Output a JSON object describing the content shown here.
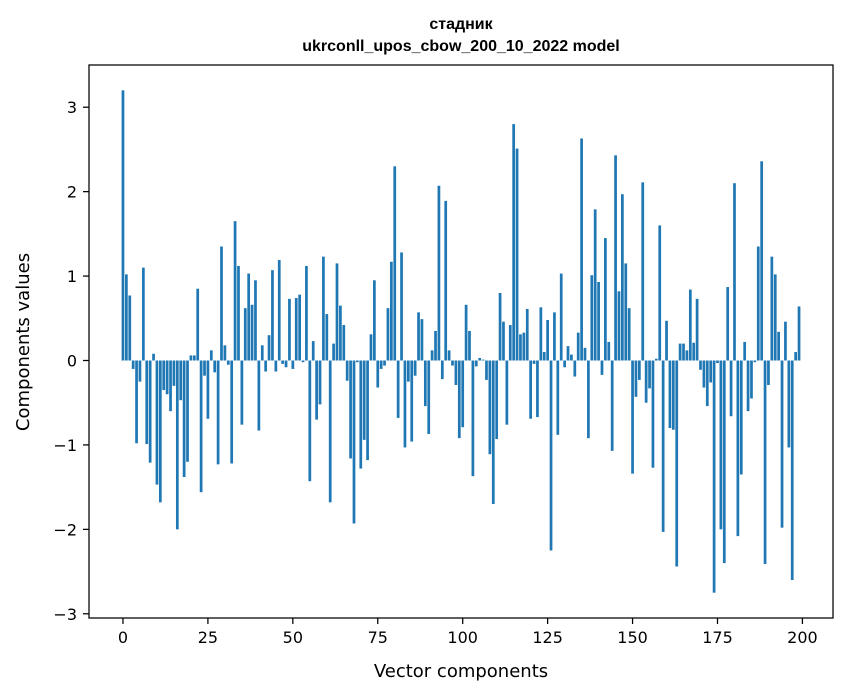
{
  "chart_data": {
    "type": "bar",
    "title_line1": "стадник",
    "title_line2": "ukrconll_upos_cbow_200_10_2022 model",
    "xlabel": "Vector components",
    "ylabel": "Components values",
    "xlim": [
      -10,
      209
    ],
    "ylim": [
      -3.05,
      3.5
    ],
    "xticks": [
      0,
      25,
      50,
      75,
      100,
      125,
      150,
      175,
      200
    ],
    "xtick_labels": [
      "0",
      "25",
      "50",
      "75",
      "100",
      "125",
      "150",
      "175",
      "200"
    ],
    "yticks": [
      -3,
      -2,
      -1,
      0,
      1,
      2,
      3
    ],
    "ytick_labels": [
      "−3",
      "−2",
      "−1",
      "0",
      "1",
      "2",
      "3"
    ],
    "bar_color": "#1f77b4",
    "values": [
      3.2,
      1.02,
      0.77,
      -0.1,
      -0.98,
      -0.25,
      1.1,
      -0.99,
      -1.21,
      0.08,
      -1.47,
      -1.68,
      -0.35,
      -0.4,
      -0.6,
      -0.3,
      -2.0,
      -0.47,
      -1.38,
      -1.2,
      0.06,
      0.06,
      0.85,
      -1.56,
      -0.18,
      -0.69,
      0.12,
      -0.14,
      -1.23,
      1.35,
      0.18,
      -0.05,
      -1.22,
      1.65,
      1.12,
      -0.76,
      0.62,
      1.03,
      0.66,
      0.95,
      -0.83,
      0.18,
      -0.13,
      0.3,
      1.07,
      -0.13,
      1.19,
      -0.04,
      -0.08,
      0.73,
      -0.1,
      0.74,
      0.78,
      -0.02,
      1.12,
      -1.43,
      0.23,
      -0.7,
      -0.52,
      1.23,
      0.55,
      -1.68,
      0.2,
      1.15,
      0.65,
      0.42,
      -0.24,
      -1.16,
      -1.93,
      -0.02,
      -1.28,
      -0.94,
      -1.18,
      0.31,
      0.95,
      -0.32,
      -0.1,
      -0.06,
      0.62,
      1.17,
      2.3,
      -0.68,
      1.28,
      -1.03,
      -0.25,
      -0.96,
      -0.18,
      0.57,
      0.49,
      -0.54,
      -0.87,
      0.12,
      0.35,
      2.07,
      -0.22,
      1.89,
      0.12,
      -0.06,
      -0.29,
      -0.92,
      -0.79,
      0.66,
      0.35,
      -1.37,
      -0.07,
      0.03,
      0.01,
      -0.23,
      -1.11,
      -1.7,
      -0.93,
      0.8,
      0.46,
      -0.76,
      0.42,
      2.8,
      2.51,
      0.31,
      0.33,
      0.61,
      -0.69,
      -0.04,
      -0.67,
      0.63,
      0.1,
      0.48,
      -2.25,
      0.57,
      -0.88,
      1.03,
      -0.08,
      0.17,
      0.07,
      -0.19,
      0.33,
      2.63,
      0.15,
      -0.92,
      1.01,
      1.79,
      0.93,
      -0.17,
      1.45,
      0.22,
      -1.07,
      2.43,
      0.82,
      1.97,
      1.15,
      0.62,
      -1.34,
      -0.43,
      -0.23,
      2.11,
      -0.5,
      -0.33,
      -1.27,
      0.02,
      1.6,
      -2.03,
      0.47,
      -0.8,
      -0.82,
      -2.44,
      0.2,
      0.2,
      0.12,
      0.84,
      0.21,
      0.73,
      -0.11,
      -0.32,
      -0.54,
      -0.26,
      -2.75,
      -0.03,
      -2.0,
      -2.4,
      0.87,
      -0.66,
      2.1,
      -2.08,
      -1.35,
      0.22,
      -0.6,
      -0.45,
      -0.02,
      1.35,
      2.36,
      -2.41,
      -0.29,
      1.23,
      1.02,
      0.34,
      -1.98,
      0.46,
      -1.03,
      -2.6,
      0.1,
      0.64
    ]
  }
}
